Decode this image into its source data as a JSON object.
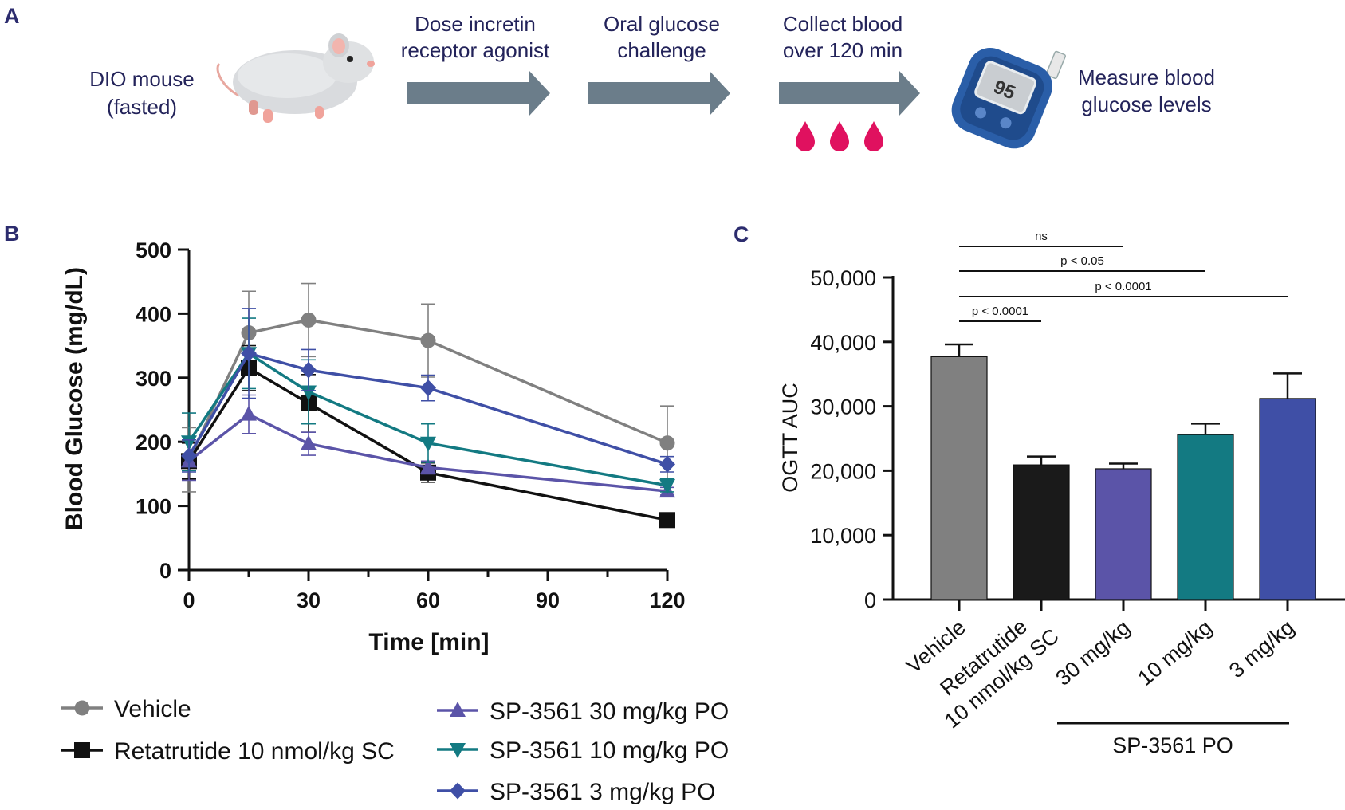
{
  "panels": {
    "a": "A",
    "b": "B",
    "c": "C"
  },
  "schematic": {
    "start_line1": "DIO mouse",
    "start_line2": "(fasted)",
    "step1_line1": "Dose incretin",
    "step1_line2": "receptor agonist",
    "step2_line1": "Oral glucose",
    "step2_line2": "challenge",
    "step3_line1": "Collect blood",
    "step3_line2": "over 120 min",
    "meter_display": "95",
    "end_line1": "Measure blood",
    "end_line2": "glucose levels",
    "colors": {
      "arrow": "#6b7d8a",
      "blood": "#e0115f",
      "meter": "#2a5ea8",
      "text": "#23235a"
    }
  },
  "chart_data": [
    {
      "type": "line",
      "panel": "B",
      "xlabel": "Time [min]",
      "ylabel": "Blood Glucose (mg/dL)",
      "xlim": [
        0,
        120
      ],
      "ylim": [
        0,
        500
      ],
      "xticks": [
        0,
        30,
        60,
        90,
        120
      ],
      "yticks": [
        0,
        100,
        200,
        300,
        400,
        500
      ],
      "x": [
        0,
        15,
        30,
        60,
        120
      ],
      "series": [
        {
          "name": "Vehicle",
          "color": "#808080",
          "marker": "circle",
          "values": [
            172,
            370,
            390,
            358,
            198
          ],
          "err": [
            50,
            65,
            57,
            57,
            58
          ]
        },
        {
          "name": "Retatrutide 10 nmol/kg SC",
          "color": "#111111",
          "marker": "square",
          "values": [
            170,
            315,
            260,
            152,
            78
          ],
          "err": [
            28,
            35,
            45,
            15,
            6
          ]
        },
        {
          "name": "SP-3561 30 mg/kg PO",
          "color": "#5b54a8",
          "marker": "triangle-up",
          "values": [
            170,
            243,
            197,
            160,
            123
          ],
          "err": [
            30,
            30,
            18,
            10,
            6
          ]
        },
        {
          "name": "SP-3561 10 mg/kg PO",
          "color": "#137a82",
          "marker": "triangle-down",
          "values": [
            200,
            338,
            278,
            198,
            132
          ],
          "err": [
            45,
            55,
            50,
            30,
            10
          ]
        },
        {
          "name": "SP-3561 3 mg/kg PO",
          "color": "#3f4fa6",
          "marker": "diamond",
          "values": [
            178,
            338,
            312,
            284,
            165
          ],
          "err": [
            25,
            70,
            32,
            20,
            12
          ]
        }
      ]
    },
    {
      "type": "bar",
      "panel": "C",
      "ylabel": "OGTT AUC",
      "ylim": [
        0,
        50000
      ],
      "yticks": [
        0,
        10000,
        20000,
        30000,
        40000,
        50000
      ],
      "ytick_labels": [
        "0",
        "10,000",
        "20,000",
        "30,000",
        "40,000",
        "50,000"
      ],
      "categories": [
        "Vehicle",
        "Retatrutide",
        "30 mg/kg",
        "10 mg/kg",
        "3 mg/kg"
      ],
      "category_second_lines": [
        "",
        "10 nmol/kg SC",
        "",
        "",
        ""
      ],
      "values": [
        37700,
        20900,
        20300,
        25600,
        31200
      ],
      "err": [
        1900,
        1300,
        800,
        1700,
        3900
      ],
      "colors": [
        "#808080",
        "#1a1a1a",
        "#5b54a8",
        "#137a82",
        "#3f4fa6"
      ],
      "group_label": "SP-3561 PO",
      "comparisons": [
        {
          "from": "Vehicle",
          "to": "30 mg/kg",
          "label": "ns"
        },
        {
          "from": "Vehicle",
          "to": "10 mg/kg",
          "label": "p < 0.05"
        },
        {
          "from": "Vehicle",
          "to": "3 mg/kg",
          "label": "p < 0.0001"
        },
        {
          "from": "Vehicle",
          "to": "Retatrutide",
          "label": "p < 0.0001"
        }
      ]
    }
  ]
}
